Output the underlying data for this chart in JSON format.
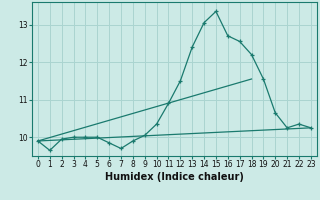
{
  "xlabel": "Humidex (Indice chaleur)",
  "bg_color": "#cceae6",
  "grid_color": "#aad4d0",
  "line_color": "#1a7a6e",
  "x_values": [
    0,
    1,
    2,
    3,
    4,
    5,
    6,
    7,
    8,
    9,
    10,
    11,
    12,
    13,
    14,
    15,
    16,
    17,
    18,
    19,
    20,
    21,
    22,
    23
  ],
  "line1": [
    9.9,
    9.65,
    9.95,
    10.0,
    10.0,
    10.0,
    9.85,
    9.7,
    9.9,
    10.05,
    10.35,
    10.9,
    11.5,
    12.4,
    13.05,
    13.35,
    12.7,
    12.55,
    12.2,
    11.55,
    10.65,
    10.25,
    10.35,
    10.25
  ],
  "trend1_x": [
    0,
    23
  ],
  "trend1_y": [
    9.9,
    10.25
  ],
  "trend2_x": [
    0,
    18
  ],
  "trend2_y": [
    9.9,
    11.55
  ],
  "ylim": [
    9.5,
    13.6
  ],
  "xlim": [
    -0.5,
    23.5
  ],
  "yticks": [
    10,
    11,
    12,
    13
  ],
  "xticks": [
    0,
    1,
    2,
    3,
    4,
    5,
    6,
    7,
    8,
    9,
    10,
    11,
    12,
    13,
    14,
    15,
    16,
    17,
    18,
    19,
    20,
    21,
    22,
    23
  ],
  "tick_fontsize": 5.5,
  "label_fontsize": 7.0
}
